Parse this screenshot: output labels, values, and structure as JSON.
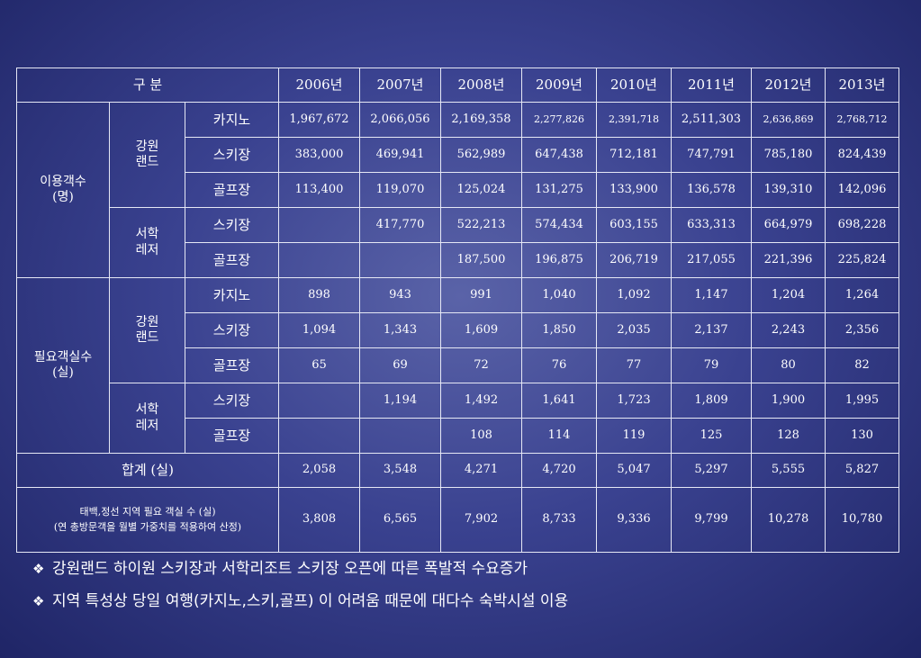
{
  "header": {
    "category": "구 분",
    "years": [
      "2006년",
      "2007년",
      "2008년",
      "2009년",
      "2010년",
      "2011년",
      "2012년",
      "2013년"
    ]
  },
  "visitors": {
    "label": "이용객수\n(명)",
    "kangwon": {
      "label": "강원\n랜드",
      "casino": {
        "label": "카지노",
        "values": [
          "1,967,672",
          "2,066,056",
          "2,169,358",
          "2,277,826",
          "2,391,718",
          "2,511,303",
          "2,636,869",
          "2,768,712"
        ]
      },
      "ski": {
        "label": "스키장",
        "values": [
          "383,000",
          "469,941",
          "562,989",
          "647,438",
          "712,181",
          "747,791",
          "785,180",
          "824,439"
        ]
      },
      "golf": {
        "label": "골프장",
        "values": [
          "113,400",
          "119,070",
          "125,024",
          "131,275",
          "133,900",
          "136,578",
          "139,310",
          "142,096"
        ]
      }
    },
    "seohak": {
      "label": "서학\n레저",
      "ski": {
        "label": "스키장",
        "values": [
          "",
          "417,770",
          "522,213",
          "574,434",
          "603,155",
          "633,313",
          "664,979",
          "698,228"
        ]
      },
      "golf": {
        "label": "골프장",
        "values": [
          "",
          "",
          "187,500",
          "196,875",
          "206,719",
          "217,055",
          "221,396",
          "225,824"
        ]
      }
    }
  },
  "rooms": {
    "label": "필요객실수\n(실)",
    "kangwon": {
      "label": "강원\n랜드",
      "casino": {
        "label": "카지노",
        "values": [
          "898",
          "943",
          "991",
          "1,040",
          "1,092",
          "1,147",
          "1,204",
          "1,264"
        ]
      },
      "ski": {
        "label": "스키장",
        "values": [
          "1,094",
          "1,343",
          "1,609",
          "1,850",
          "2,035",
          "2,137",
          "2,243",
          "2,356"
        ]
      },
      "golf": {
        "label": "골프장",
        "values": [
          "65",
          "69",
          "72",
          "76",
          "77",
          "79",
          "80",
          "82"
        ]
      }
    },
    "seohak": {
      "label": "서학\n레저",
      "ski": {
        "label": "스키장",
        "values": [
          "",
          "1,194",
          "1,492",
          "1,641",
          "1,723",
          "1,809",
          "1,900",
          "1,995"
        ]
      },
      "golf": {
        "label": "골프장",
        "values": [
          "",
          "",
          "108",
          "114",
          "119",
          "125",
          "128",
          "130"
        ]
      }
    }
  },
  "total": {
    "label": "합계 (실)",
    "values": [
      "2,058",
      "3,548",
      "4,271",
      "4,720",
      "5,047",
      "5,297",
      "5,555",
      "5,827"
    ]
  },
  "regional": {
    "label": "태백,정선 지역 필요 객실 수 (실)\n(연 총방문객을 월별 가중치를 적용하여 산정)",
    "values": [
      "3,808",
      "6,565",
      "7,902",
      "8,733",
      "9,336",
      "9,799",
      "10,278",
      "10,780"
    ]
  },
  "bullets": [
    {
      "icon": "diamond-bullet-icon",
      "text": "강원랜드 하이원 스키장과 서학리조트 스키장 오픈에 따른 폭발적 수요증가"
    },
    {
      "icon": "diamond-bullet-icon",
      "text": "지역 특성상 당일 여행(카지노,스키,골프) 이 어려움 때문에 대다수 숙박시설 이용"
    }
  ]
}
